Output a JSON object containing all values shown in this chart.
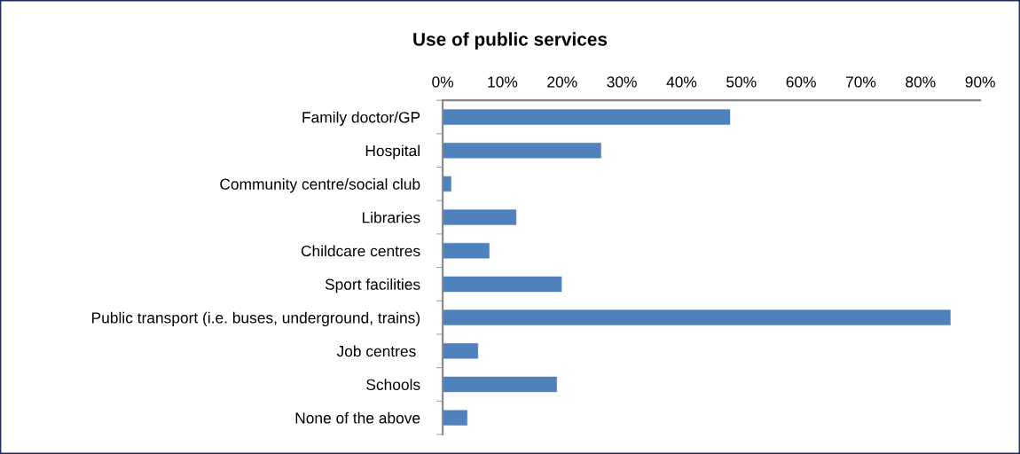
{
  "chart_data": {
    "type": "bar",
    "orientation": "horizontal",
    "title": "Use of public services",
    "categories": [
      "Family doctor/GP",
      "Hospital",
      "Community centre/social club",
      "Libraries",
      "Childcare centres",
      "Sport facilities",
      "Public transport (i.e. buses, underground, trains)",
      "Job centres ",
      "Schools",
      "None of the above"
    ],
    "values": [
      48.1,
      26.5,
      1.4,
      12.3,
      7.8,
      19.9,
      85.0,
      5.9,
      19.1,
      4.1
    ],
    "color": "#4f81bd",
    "xlim": [
      0,
      90
    ],
    "xticks": [
      {
        "value": 0,
        "label": "0%"
      },
      {
        "value": 10,
        "label": "10%"
      },
      {
        "value": 20,
        "label": "20%"
      },
      {
        "value": 30,
        "label": "30%"
      },
      {
        "value": 40,
        "label": "40%"
      },
      {
        "value": 50,
        "label": "50%"
      },
      {
        "value": 60,
        "label": "60%"
      },
      {
        "value": 70,
        "label": "70%"
      },
      {
        "value": 80,
        "label": "80%"
      },
      {
        "value": 90,
        "label": "90%"
      }
    ],
    "grid": false,
    "legend": false
  }
}
